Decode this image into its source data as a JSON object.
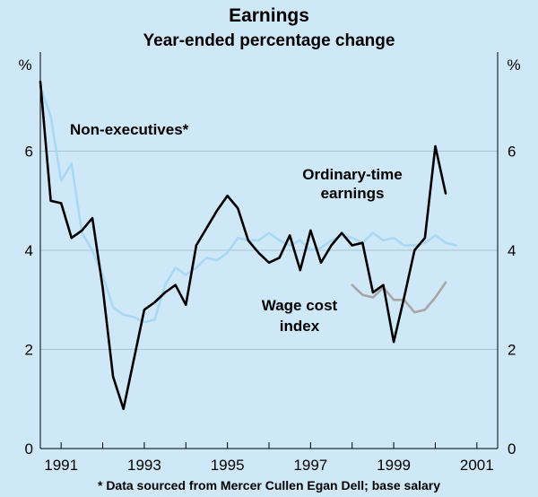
{
  "chart_data": {
    "type": "line",
    "title": "Earnings",
    "subtitle": "Year-ended percentage change",
    "ylabel_left": "%",
    "ylabel_right": "%",
    "ylim": [
      0,
      8
    ],
    "yticks": [
      "0",
      "2",
      "4",
      "6"
    ],
    "yticks_right": [
      "0",
      "2",
      "4",
      "6"
    ],
    "xlim": [
      1990.5,
      2001.5
    ],
    "xticks": [
      "1991",
      "1993",
      "1995",
      "1997",
      "1999",
      "2001"
    ],
    "grid": true,
    "footnote": "* Data sourced from Mercer Cullen Egan Dell; base salary",
    "series": [
      {
        "name": "Ordinary-time earnings",
        "color": "#000000",
        "x": [
          1990.5,
          1990.75,
          1991.0,
          1991.25,
          1991.5,
          1991.75,
          1992.0,
          1992.25,
          1992.5,
          1992.75,
          1993.0,
          1993.25,
          1993.5,
          1993.75,
          1994.0,
          1994.25,
          1994.5,
          1994.75,
          1995.0,
          1995.25,
          1995.5,
          1995.75,
          1996.0,
          1996.25,
          1996.5,
          1996.75,
          1997.0,
          1997.25,
          1997.5,
          1997.75,
          1998.0,
          1998.25,
          1998.5,
          1998.75,
          1999.0,
          1999.25,
          1999.5,
          1999.75,
          2000.0,
          2000.25,
          2000.5
        ],
        "values": [
          7.4,
          5.0,
          4.95,
          4.25,
          4.4,
          4.65,
          3.25,
          1.45,
          0.8,
          1.8,
          2.8,
          2.95,
          3.15,
          3.3,
          2.9,
          4.1,
          4.45,
          4.8,
          5.1,
          4.85,
          4.2,
          3.95,
          3.75,
          3.85,
          4.3,
          3.6,
          4.4,
          3.75,
          4.1,
          4.35,
          4.1,
          4.15,
          3.15,
          3.3,
          2.15,
          3.05,
          4.0,
          4.25,
          6.1,
          5.15,
          null
        ]
      },
      {
        "name": "Non-executives*",
        "color": "#a8d8f4",
        "x": [
          1990.5,
          1990.75,
          1991.0,
          1991.25,
          1991.5,
          1991.75,
          1992.0,
          1992.25,
          1992.5,
          1992.75,
          1993.0,
          1993.25,
          1993.5,
          1993.75,
          1994.0,
          1994.25,
          1994.5,
          1994.75,
          1995.0,
          1995.25,
          1995.5,
          1995.75,
          1996.0,
          1996.25,
          1996.5,
          1996.75,
          1997.0,
          1997.25,
          1997.5,
          1997.75,
          1998.0,
          1998.25,
          1998.5,
          1998.75,
          1999.0,
          1999.25,
          1999.5,
          1999.75,
          2000.0,
          2000.25,
          2000.5
        ],
        "values": [
          7.3,
          6.7,
          5.4,
          5.75,
          4.35,
          4.0,
          3.5,
          2.85,
          2.7,
          2.65,
          2.55,
          2.6,
          3.3,
          3.65,
          3.5,
          3.65,
          3.85,
          3.8,
          3.95,
          4.25,
          4.2,
          4.2,
          4.35,
          4.2,
          4.1,
          4.2,
          4.0,
          4.05,
          4.2,
          4.3,
          4.25,
          4.15,
          4.35,
          4.2,
          4.25,
          4.1,
          4.1,
          4.15,
          4.3,
          4.15,
          4.1
        ]
      },
      {
        "name": "Wage cost index",
        "color": "#a6a6a6",
        "x": [
          1998.0,
          1998.25,
          1998.5,
          1998.75,
          1999.0,
          1999.25,
          1999.5,
          1999.75,
          2000.0,
          2000.25,
          2000.5
        ],
        "values": [
          3.3,
          3.1,
          3.05,
          3.25,
          3.0,
          3.0,
          2.75,
          2.8,
          3.05,
          3.35,
          null
        ]
      }
    ],
    "annotations": [
      {
        "text": "Non-executives*"
      },
      {
        "text": "Ordinary-time"
      },
      {
        "text": "earnings"
      },
      {
        "text": "Wage cost"
      },
      {
        "text": "index"
      }
    ]
  }
}
